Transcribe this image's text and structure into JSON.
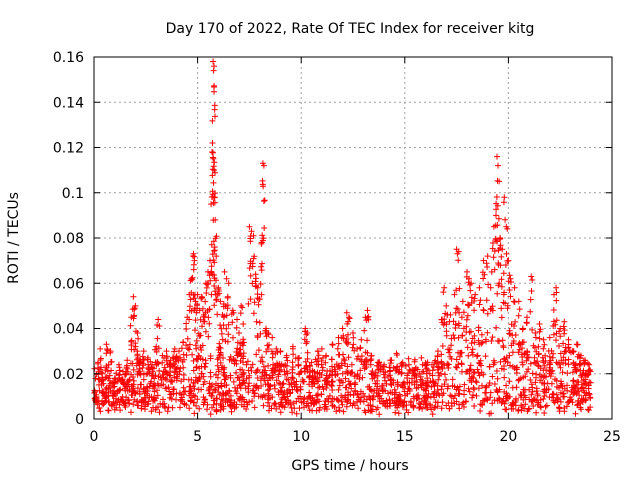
{
  "chart_data": {
    "type": "scatter",
    "title": "Day 170 of 2022, Rate Of TEC Index for receiver kitg",
    "xlabel": "GPS time / hours",
    "ylabel": "ROTI / TECUs",
    "xlim": [
      0,
      25
    ],
    "ylim": [
      0,
      0.16
    ],
    "x_ticks": [
      0,
      5,
      10,
      15,
      20,
      25
    ],
    "x_tick_labels": [
      "0",
      "5",
      "10",
      "15",
      "20",
      "25"
    ],
    "y_ticks": [
      0,
      0.02,
      0.04,
      0.06,
      0.08,
      0.1,
      0.12,
      0.14,
      0.16
    ],
    "y_tick_labels": [
      "0",
      "0.02",
      "0.04",
      "0.06",
      "0.08",
      "0.1",
      "0.12",
      "0.14",
      "0.16"
    ],
    "grid": true,
    "marker": "+",
    "color": "#ff0000",
    "series": [
      {
        "name": "ROTI",
        "points": [
          [
            0.05,
            0.012
          ],
          [
            0.2,
            0.025
          ],
          [
            0.3,
            0.031
          ],
          [
            0.4,
            0.02
          ],
          [
            0.6,
            0.033
          ],
          [
            0.8,
            0.03
          ],
          [
            1.0,
            0.018
          ],
          [
            1.2,
            0.024
          ],
          [
            1.4,
            0.021
          ],
          [
            1.6,
            0.026
          ],
          [
            1.8,
            0.045
          ],
          [
            1.9,
            0.054
          ],
          [
            2.0,
            0.05
          ],
          [
            2.1,
            0.038
          ],
          [
            2.2,
            0.025
          ],
          [
            2.4,
            0.03
          ],
          [
            2.6,
            0.027
          ],
          [
            2.8,
            0.024
          ],
          [
            3.0,
            0.032
          ],
          [
            3.1,
            0.044
          ],
          [
            3.3,
            0.028
          ],
          [
            3.5,
            0.03
          ],
          [
            3.7,
            0.026
          ],
          [
            3.9,
            0.031
          ],
          [
            4.1,
            0.03
          ],
          [
            4.3,
            0.034
          ],
          [
            4.5,
            0.045
          ],
          [
            4.6,
            0.055
          ],
          [
            4.7,
            0.062
          ],
          [
            4.8,
            0.073
          ],
          [
            4.85,
            0.07
          ],
          [
            4.9,
            0.052
          ],
          [
            5.0,
            0.055
          ],
          [
            5.1,
            0.048
          ],
          [
            5.2,
            0.054
          ],
          [
            5.3,
            0.046
          ],
          [
            5.4,
            0.06
          ],
          [
            5.5,
            0.065
          ],
          [
            5.6,
            0.07
          ],
          [
            5.65,
            0.095
          ],
          [
            5.7,
            0.118
          ],
          [
            5.72,
            0.122
          ],
          [
            5.75,
            0.158
          ],
          [
            5.77,
            0.154
          ],
          [
            5.79,
            0.156
          ],
          [
            5.8,
            0.11
          ],
          [
            5.82,
            0.098
          ],
          [
            5.85,
            0.088
          ],
          [
            5.9,
            0.072
          ],
          [
            6.0,
            0.058
          ],
          [
            6.1,
            0.052
          ],
          [
            6.2,
            0.046
          ],
          [
            6.3,
            0.065
          ],
          [
            6.4,
            0.062
          ],
          [
            6.5,
            0.06
          ],
          [
            6.7,
            0.048
          ],
          [
            6.9,
            0.044
          ],
          [
            7.0,
            0.038
          ],
          [
            7.1,
            0.05
          ],
          [
            7.2,
            0.042
          ],
          [
            7.5,
            0.085
          ],
          [
            7.6,
            0.083
          ],
          [
            7.7,
            0.081
          ],
          [
            7.8,
            0.064
          ],
          [
            7.9,
            0.058
          ],
          [
            8.0,
            0.053
          ],
          [
            8.1,
            0.078
          ],
          [
            8.15,
            0.113
          ],
          [
            8.2,
            0.112
          ],
          [
            8.3,
            0.04
          ],
          [
            8.4,
            0.038
          ],
          [
            8.6,
            0.036
          ],
          [
            8.8,
            0.031
          ],
          [
            9.0,
            0.03
          ],
          [
            9.3,
            0.028
          ],
          [
            9.6,
            0.032
          ],
          [
            9.9,
            0.027
          ],
          [
            10.2,
            0.04
          ],
          [
            10.3,
            0.038
          ],
          [
            10.5,
            0.025
          ],
          [
            10.8,
            0.03
          ],
          [
            11.0,
            0.031
          ],
          [
            11.2,
            0.028
          ],
          [
            11.5,
            0.033
          ],
          [
            11.8,
            0.036
          ],
          [
            12.0,
            0.04
          ],
          [
            12.2,
            0.047
          ],
          [
            12.3,
            0.045
          ],
          [
            12.5,
            0.038
          ],
          [
            12.7,
            0.031
          ],
          [
            12.9,
            0.035
          ],
          [
            13.1,
            0.045
          ],
          [
            13.2,
            0.048
          ],
          [
            13.4,
            0.028
          ],
          [
            13.7,
            0.025
          ],
          [
            14.0,
            0.024
          ],
          [
            14.3,
            0.026
          ],
          [
            14.6,
            0.029
          ],
          [
            14.9,
            0.025
          ],
          [
            15.2,
            0.024
          ],
          [
            15.5,
            0.022
          ],
          [
            15.8,
            0.027
          ],
          [
            16.1,
            0.025
          ],
          [
            16.4,
            0.023
          ],
          [
            16.6,
            0.03
          ],
          [
            16.8,
            0.044
          ],
          [
            16.9,
            0.058
          ],
          [
            17.0,
            0.05
          ],
          [
            17.2,
            0.046
          ],
          [
            17.4,
            0.055
          ],
          [
            17.5,
            0.075
          ],
          [
            17.6,
            0.074
          ],
          [
            17.8,
            0.052
          ],
          [
            18.0,
            0.065
          ],
          [
            18.1,
            0.062
          ],
          [
            18.2,
            0.06
          ],
          [
            18.4,
            0.055
          ],
          [
            18.6,
            0.058
          ],
          [
            18.8,
            0.07
          ],
          [
            19.0,
            0.072
          ],
          [
            19.2,
            0.065
          ],
          [
            19.3,
            0.085
          ],
          [
            19.4,
            0.09
          ],
          [
            19.45,
            0.116
          ],
          [
            19.5,
            0.112
          ],
          [
            19.55,
            0.105
          ],
          [
            19.6,
            0.08
          ],
          [
            19.7,
            0.075
          ],
          [
            19.8,
            0.098
          ],
          [
            19.9,
            0.085
          ],
          [
            20.0,
            0.07
          ],
          [
            20.1,
            0.062
          ],
          [
            20.3,
            0.058
          ],
          [
            20.5,
            0.052
          ],
          [
            20.7,
            0.04
          ],
          [
            20.9,
            0.045
          ],
          [
            21.1,
            0.063
          ],
          [
            21.3,
            0.038
          ],
          [
            21.5,
            0.042
          ],
          [
            21.7,
            0.035
          ],
          [
            22.0,
            0.036
          ],
          [
            22.2,
            0.055
          ],
          [
            22.3,
            0.058
          ],
          [
            22.5,
            0.04
          ],
          [
            22.7,
            0.043
          ],
          [
            22.9,
            0.035
          ],
          [
            23.1,
            0.03
          ],
          [
            23.3,
            0.033
          ],
          [
            23.5,
            0.028
          ],
          [
            23.7,
            0.026
          ],
          [
            23.9,
            0.024
          ]
        ],
        "baseline": {
          "note": "dense baseline band sampled across the day",
          "x_start": 0.0,
          "x_end": 24.0,
          "low": 0.002,
          "high_profile": [
            [
              0.0,
              0.02
            ],
            [
              2.0,
              0.022
            ],
            [
              4.5,
              0.026
            ],
            [
              6.0,
              0.028
            ],
            [
              8.0,
              0.024
            ],
            [
              10.0,
              0.022
            ],
            [
              12.0,
              0.024
            ],
            [
              14.0,
              0.021
            ],
            [
              16.5,
              0.022
            ],
            [
              17.0,
              0.03
            ],
            [
              18.0,
              0.034
            ],
            [
              19.5,
              0.036
            ],
            [
              21.0,
              0.03
            ],
            [
              23.0,
              0.026
            ],
            [
              24.0,
              0.022
            ]
          ]
        }
      }
    ]
  }
}
